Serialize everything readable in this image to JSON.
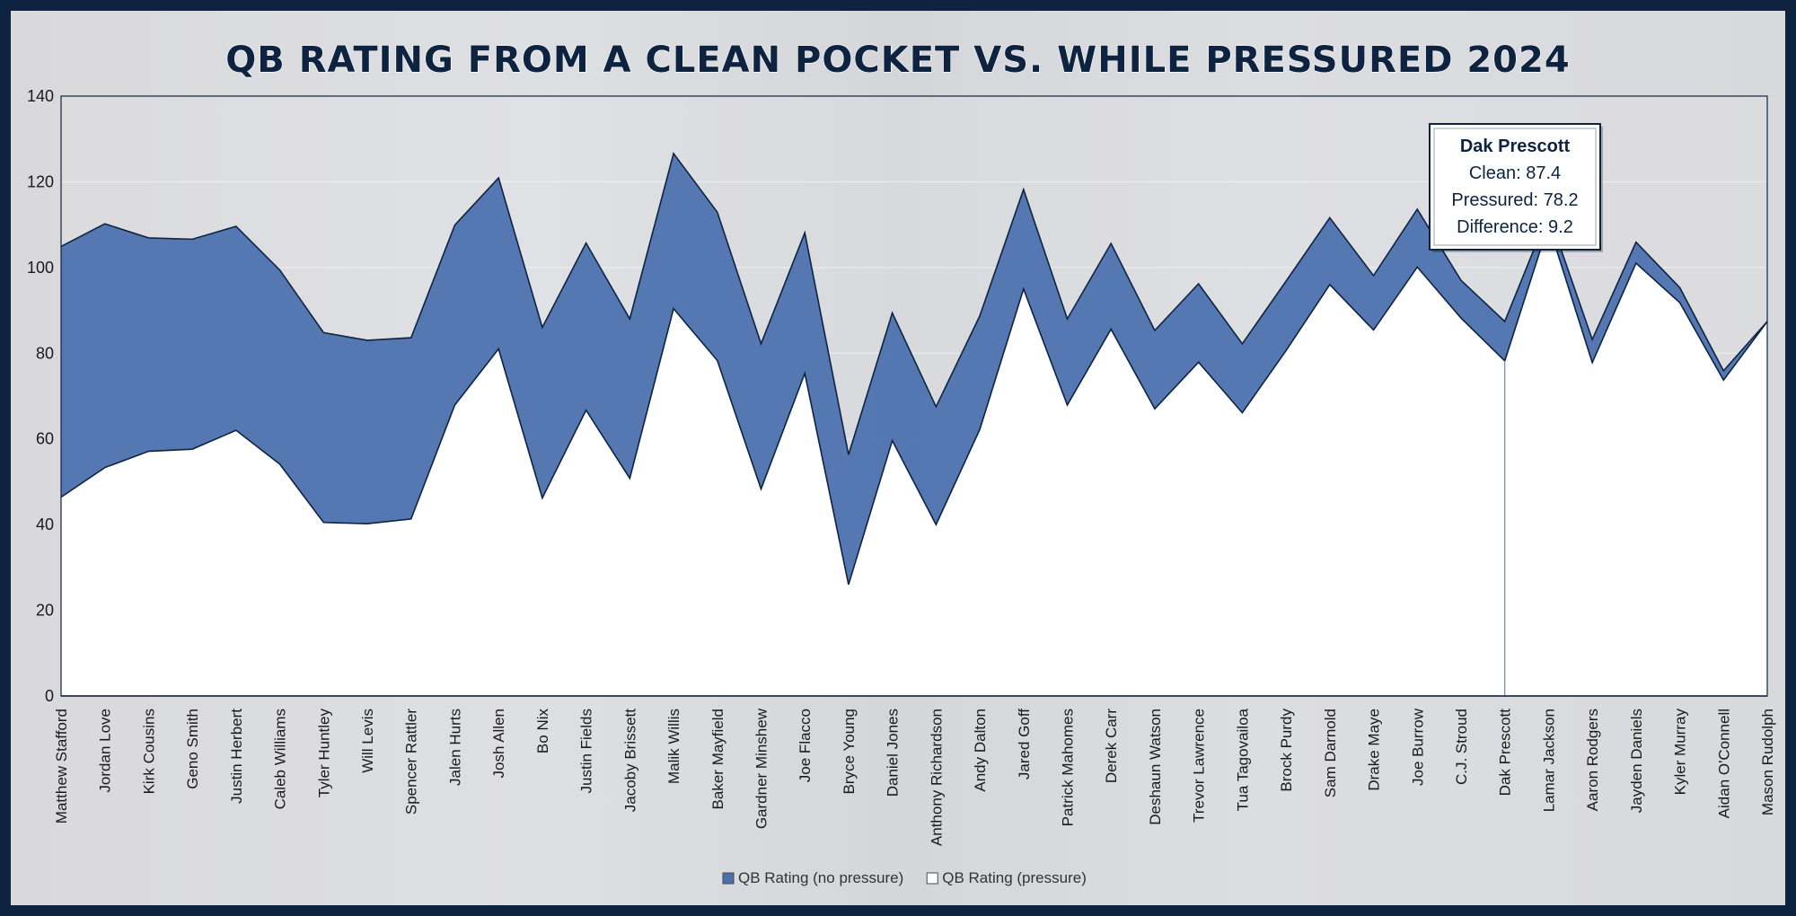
{
  "chart_data": {
    "type": "area",
    "title": "QB RATING FROM A CLEAN POCKET VS. WHILE PRESSURED  2024",
    "ylim": [
      0,
      140
    ],
    "yticks": [
      0,
      20,
      40,
      60,
      80,
      100,
      120,
      140
    ],
    "categories": [
      "Matthew Stafford",
      "Jordan Love",
      "Kirk Cousins",
      "Geno Smith",
      "Justin Herbert",
      "Caleb Williams",
      "Tyler Huntley",
      "Will Levis",
      "Spencer Rattler",
      "Jalen Hurts",
      "Josh Allen",
      "Bo Nix",
      "Justin Fields",
      "Jacoby Brissett",
      "Malik Willis",
      "Baker Mayfield",
      "Gardner Minshew",
      "Joe Flacco",
      "Bryce Young",
      "Daniel Jones",
      "Anthony Richardson",
      "Andy Dalton",
      "Jared Goff",
      "Patrick Mahomes",
      "Derek Carr",
      "Deshaun Watson",
      "Trevor Lawrence",
      "Tua Tagovailoa",
      "Brock Purdy",
      "Sam Darnold",
      "Drake Maye",
      "Joe Burrow",
      "C.J. Stroud",
      "Dak Prescott",
      "Lamar Jackson",
      "Aaron Rodgers",
      "Jayden Daniels",
      "Kyler Murray",
      "Aidan O'Connell",
      "Mason Rudolph"
    ],
    "series": [
      {
        "name": "QB Rating (no pressure)",
        "color": "#4a6fae",
        "values": [
          104.9,
          110.2,
          106.9,
          106.6,
          109.6,
          99.4,
          84.8,
          83.0,
          83.6,
          109.9,
          120.9,
          86.0,
          105.7,
          88.0,
          126.6,
          112.9,
          82.2,
          108.1,
          56.3,
          89.4,
          67.5,
          88.7,
          118.2,
          88.0,
          105.6,
          85.3,
          96.2,
          82.2,
          96.8,
          111.6,
          98.1,
          113.6,
          97.0,
          87.4,
          112.6,
          83.2,
          105.9,
          95.3,
          75.9,
          87.4
        ]
      },
      {
        "name": "QB Rating (pressure)",
        "color": "#ffffff",
        "values": [
          46.4,
          53.3,
          57.1,
          57.6,
          62.0,
          54.1,
          40.5,
          40.2,
          41.3,
          67.9,
          81.0,
          46.2,
          66.7,
          50.8,
          90.4,
          78.3,
          48.3,
          75.3,
          26.0,
          59.6,
          40.0,
          62.2,
          95.0,
          67.9,
          85.6,
          67.0,
          77.9,
          66.1,
          80.6,
          96.0,
          85.4,
          100.1,
          88.2,
          78.2,
          110.0,
          77.8,
          101.0,
          91.8,
          73.7,
          87.4
        ]
      }
    ],
    "legend_position": "bottom",
    "callout": {
      "category": "Dak Prescott",
      "name": "Dak Prescott",
      "line1": "Clean: 87.4",
      "line2": "Pressured: 78.2",
      "line3": "Difference: 9.2"
    }
  },
  "colors": {
    "frame": "#0d2340",
    "title": "#0d2340"
  }
}
